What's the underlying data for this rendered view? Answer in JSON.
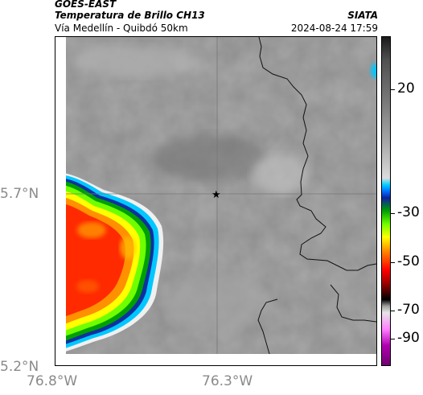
{
  "header": {
    "title_line1": "GOES-EAST",
    "title_line2": "Temperatura de Brillo CH13",
    "subtitle": "Vía Medellín - Quibdó 50km",
    "brand": "SIATA",
    "datetime": "2024-08-24 17:59"
  },
  "axes": {
    "y_ticks": [
      "5.7°N",
      "5.2°N"
    ],
    "x_ticks": [
      "76.8°W",
      "76.3°W"
    ]
  },
  "colorbar": {
    "tick_labels": [
      "20",
      "-30",
      "-50",
      "-70",
      "-90"
    ],
    "colors": [
      "#1a1a1a",
      "#a8a8a8",
      "#00d2ff",
      "#1020a0",
      "#70ff00",
      "#ffff00",
      "#ff0000",
      "#000000",
      "#ff80ff",
      "#700070"
    ]
  },
  "map": {
    "background_color": "#8c8c8c",
    "marker_icon": "star-icon",
    "cloud_core_color": "#ff2a00"
  }
}
